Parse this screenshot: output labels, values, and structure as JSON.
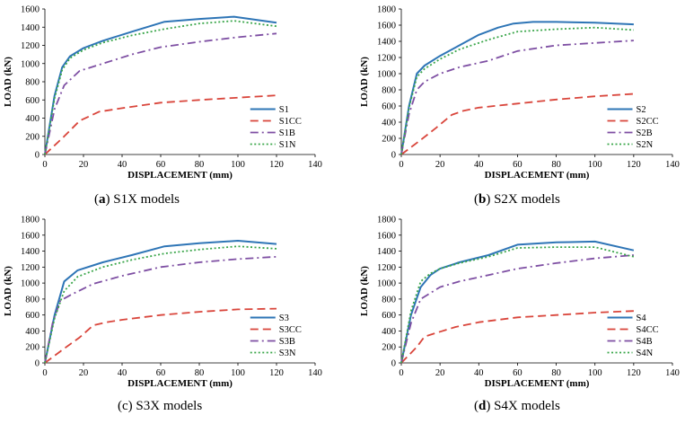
{
  "chart_data": [
    {
      "type": "line",
      "panel_letter": "a",
      "caption": "S1X models",
      "xlabel": "DISPLACEMENT  (mm)",
      "ylabel": "LOAD (kN)",
      "xlim": [
        0,
        140
      ],
      "ylim": [
        0,
        1600
      ],
      "xticks": [
        0,
        20,
        40,
        60,
        80,
        100,
        120,
        140
      ],
      "yticks": [
        0,
        200,
        400,
        600,
        800,
        1000,
        1200,
        1400,
        1600
      ],
      "grid": false,
      "legend_position": "bottom-right",
      "series": [
        {
          "name": "S1",
          "color": "#2e75b6",
          "dash": "solid",
          "x": [
            0,
            5,
            9,
            13,
            20,
            30,
            45,
            62,
            80,
            98,
            120
          ],
          "y": [
            0,
            650,
            960,
            1080,
            1170,
            1250,
            1350,
            1460,
            1490,
            1515,
            1450
          ]
        },
        {
          "name": "S1CC",
          "color": "#d9453b",
          "dash": "dash",
          "x": [
            0,
            10,
            18,
            28,
            40,
            60,
            80,
            100,
            120
          ],
          "y": [
            0,
            200,
            370,
            470,
            510,
            570,
            600,
            625,
            650
          ]
        },
        {
          "name": "S1B",
          "color": "#7e4fa3",
          "dash": "dashdot",
          "x": [
            0,
            5,
            10,
            18,
            30,
            45,
            60,
            80,
            100,
            120
          ],
          "y": [
            0,
            500,
            760,
            920,
            1000,
            1100,
            1180,
            1240,
            1290,
            1330
          ]
        },
        {
          "name": "S1N",
          "color": "#3aa64a",
          "dash": "dot",
          "x": [
            0,
            5,
            9,
            13,
            20,
            30,
            45,
            62,
            80,
            98,
            120
          ],
          "y": [
            0,
            620,
            930,
            1060,
            1150,
            1230,
            1310,
            1380,
            1440,
            1470,
            1410
          ]
        }
      ]
    },
    {
      "type": "line",
      "panel_letter": "b",
      "caption": "S2X models",
      "xlabel": "DISPLACEMENT  (mm)",
      "ylabel": "LOAD (kN)",
      "xlim": [
        0,
        140
      ],
      "ylim": [
        0,
        1800
      ],
      "xticks": [
        0,
        20,
        40,
        60,
        80,
        100,
        120,
        140
      ],
      "yticks": [
        0,
        200,
        400,
        600,
        800,
        1000,
        1200,
        1400,
        1600,
        1800
      ],
      "grid": false,
      "legend_position": "bottom-right",
      "series": [
        {
          "name": "S2",
          "color": "#2e75b6",
          "dash": "solid",
          "x": [
            0,
            4,
            8,
            12,
            20,
            30,
            40,
            50,
            58,
            68,
            80,
            100,
            120
          ],
          "y": [
            0,
            600,
            1000,
            1100,
            1220,
            1350,
            1480,
            1570,
            1620,
            1640,
            1640,
            1630,
            1610
          ]
        },
        {
          "name": "S2CC",
          "color": "#d9453b",
          "dash": "dash",
          "x": [
            0,
            10,
            18,
            26,
            32,
            40,
            60,
            80,
            100,
            120
          ],
          "y": [
            0,
            180,
            330,
            490,
            540,
            580,
            630,
            680,
            720,
            750
          ]
        },
        {
          "name": "S2B",
          "color": "#7e4fa3",
          "dash": "dashdot",
          "x": [
            0,
            4,
            8,
            12,
            20,
            30,
            45,
            60,
            80,
            100,
            120
          ],
          "y": [
            0,
            500,
            800,
            900,
            1000,
            1080,
            1160,
            1280,
            1350,
            1380,
            1410
          ]
        },
        {
          "name": "S2N",
          "color": "#3aa64a",
          "dash": "dot",
          "x": [
            0,
            4,
            8,
            12,
            20,
            30,
            45,
            60,
            80,
            100,
            120
          ],
          "y": [
            0,
            580,
            960,
            1060,
            1180,
            1300,
            1420,
            1520,
            1550,
            1570,
            1540
          ]
        }
      ]
    },
    {
      "type": "line",
      "panel_letter": "c",
      "caption": "S3X models",
      "xlabel": "DISPLACEMENT  (mm)",
      "ylabel": "LOAD (kN)",
      "xlim": [
        0,
        140
      ],
      "ylim": [
        0,
        1800
      ],
      "xticks": [
        0,
        20,
        40,
        60,
        80,
        100,
        120,
        140
      ],
      "yticks": [
        0,
        200,
        400,
        600,
        800,
        1000,
        1200,
        1400,
        1600,
        1800
      ],
      "grid": false,
      "legend_position": "bottom-right",
      "series": [
        {
          "name": "S3",
          "color": "#2e75b6",
          "dash": "solid",
          "x": [
            0,
            5,
            10,
            17,
            30,
            45,
            62,
            80,
            100,
            120
          ],
          "y": [
            0,
            600,
            1020,
            1160,
            1260,
            1350,
            1460,
            1500,
            1530,
            1490
          ]
        },
        {
          "name": "S3CC",
          "color": "#d9453b",
          "dash": "dash",
          "x": [
            0,
            10,
            18,
            25,
            32,
            40,
            60,
            80,
            100,
            120
          ],
          "y": [
            0,
            180,
            320,
            470,
            510,
            540,
            600,
            640,
            670,
            680
          ]
        },
        {
          "name": "S3B",
          "color": "#7e4fa3",
          "dash": "dashdot",
          "x": [
            0,
            4,
            8,
            14,
            25,
            40,
            60,
            80,
            100,
            120
          ],
          "y": [
            0,
            500,
            780,
            860,
            990,
            1090,
            1200,
            1260,
            1300,
            1330
          ]
        },
        {
          "name": "S3N",
          "color": "#3aa64a",
          "dash": "dot",
          "x": [
            0,
            5,
            10,
            17,
            30,
            45,
            62,
            80,
            100,
            120
          ],
          "y": [
            0,
            560,
            900,
            1080,
            1200,
            1290,
            1370,
            1420,
            1460,
            1430
          ]
        }
      ]
    },
    {
      "type": "line",
      "panel_letter": "d",
      "caption": "S4X models",
      "xlabel": "DISPLACEMENT  (mm)",
      "ylabel": "LOAD (kN)",
      "xlim": [
        0,
        140
      ],
      "ylim": [
        0,
        1800
      ],
      "xticks": [
        0,
        20,
        40,
        60,
        80,
        100,
        120,
        140
      ],
      "yticks": [
        0,
        200,
        400,
        600,
        800,
        1000,
        1200,
        1400,
        1600,
        1800
      ],
      "grid": false,
      "legend_position": "bottom-right",
      "series": [
        {
          "name": "S4",
          "color": "#2e75b6",
          "dash": "solid",
          "x": [
            0,
            5,
            10,
            15,
            20,
            30,
            45,
            60,
            80,
            100,
            120
          ],
          "y": [
            0,
            600,
            950,
            1100,
            1180,
            1260,
            1350,
            1480,
            1510,
            1520,
            1410
          ]
        },
        {
          "name": "S4CC",
          "color": "#d9453b",
          "dash": "dash",
          "x": [
            0,
            8,
            12,
            20,
            28,
            40,
            60,
            80,
            100,
            120
          ],
          "y": [
            0,
            200,
            330,
            390,
            450,
            510,
            570,
            600,
            630,
            650
          ]
        },
        {
          "name": "S4B",
          "color": "#7e4fa3",
          "dash": "dashdot",
          "x": [
            0,
            5,
            10,
            20,
            30,
            45,
            60,
            80,
            100,
            120
          ],
          "y": [
            0,
            500,
            800,
            950,
            1020,
            1100,
            1180,
            1250,
            1310,
            1350
          ]
        },
        {
          "name": "S4N",
          "color": "#3aa64a",
          "dash": "dot",
          "x": [
            0,
            5,
            10,
            15,
            20,
            30,
            45,
            60,
            80,
            100,
            120
          ],
          "y": [
            0,
            650,
            1020,
            1120,
            1180,
            1250,
            1330,
            1440,
            1450,
            1450,
            1330
          ]
        }
      ]
    }
  ]
}
